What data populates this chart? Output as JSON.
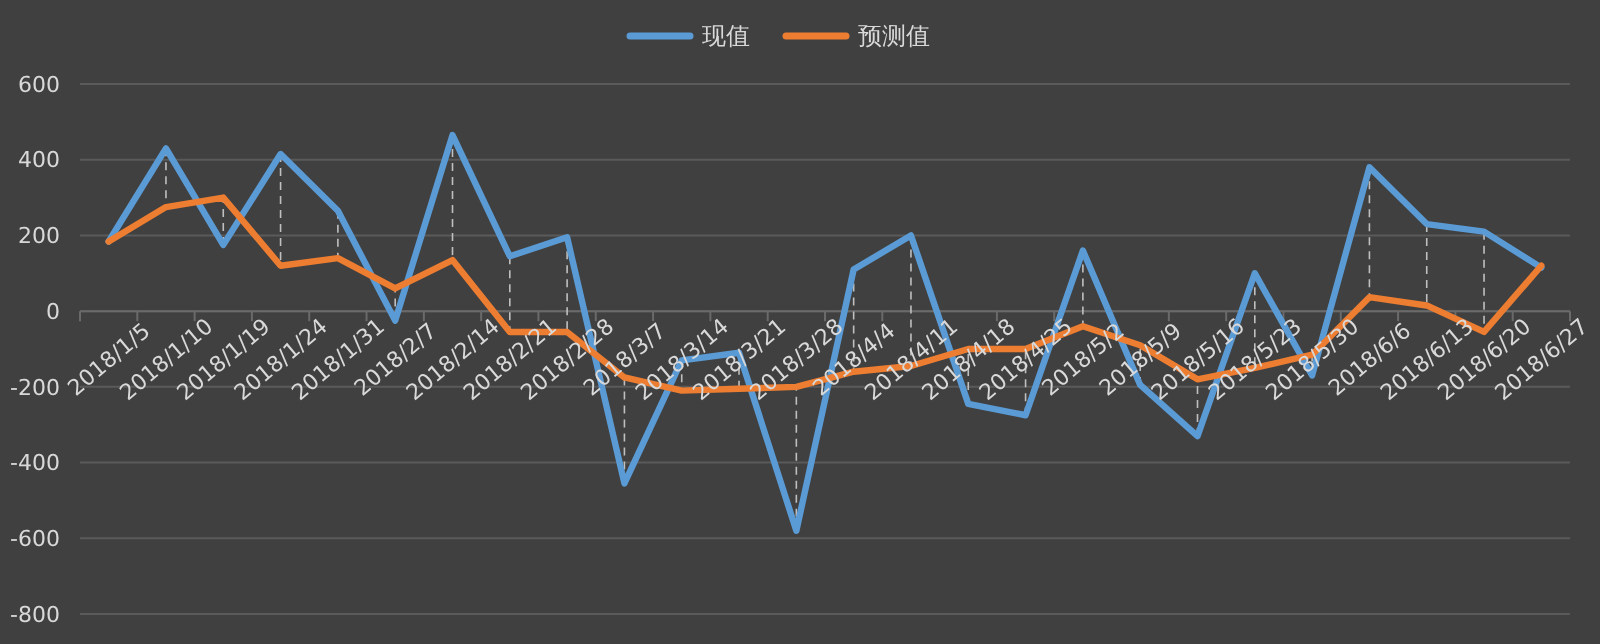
{
  "chart_data": {
    "type": "line",
    "categories": [
      "2018/1/5",
      "2018/1/10",
      "2018/1/19",
      "2018/1/24",
      "2018/1/31",
      "2018/2/7",
      "2018/2/14",
      "2018/2/21",
      "2018/2/28",
      "2018/3/7",
      "2018/3/14",
      "2018/3/21",
      "2018/3/28",
      "2018/4/4",
      "2018/4/11",
      "2018/4/18",
      "2018/4/25",
      "2018/5/2",
      "2018/5/9",
      "2018/5/16",
      "2018/5/23",
      "2018/5/30",
      "2018/6/6",
      "2018/6/13",
      "2018/6/20",
      "2018/6/27"
    ],
    "series": [
      {
        "name": "现值",
        "color": "#5b9bd5",
        "values": [
          184,
          430,
          175,
          415,
          265,
          -25,
          465,
          145,
          195,
          -455,
          -130,
          -110,
          -580,
          110,
          200,
          -245,
          -275,
          160,
          -195,
          -330,
          100,
          -170,
          380,
          230,
          210,
          115
        ]
      },
      {
        "name": "预测值",
        "color": "#ed7d31",
        "values": [
          184,
          275,
          300,
          120,
          140,
          60,
          135,
          -55,
          -55,
          -175,
          -210,
          -205,
          -200,
          -160,
          -145,
          -100,
          -100,
          -40,
          -90,
          -180,
          -150,
          -115,
          37,
          15,
          -55,
          120
        ]
      }
    ],
    "ylim": [
      -800,
      600
    ],
    "yticks": [
      -800,
      -600,
      -400,
      -200,
      0,
      200,
      400,
      600
    ],
    "grid": "y",
    "legend": "top",
    "marker": "none",
    "line_style": "solid"
  }
}
